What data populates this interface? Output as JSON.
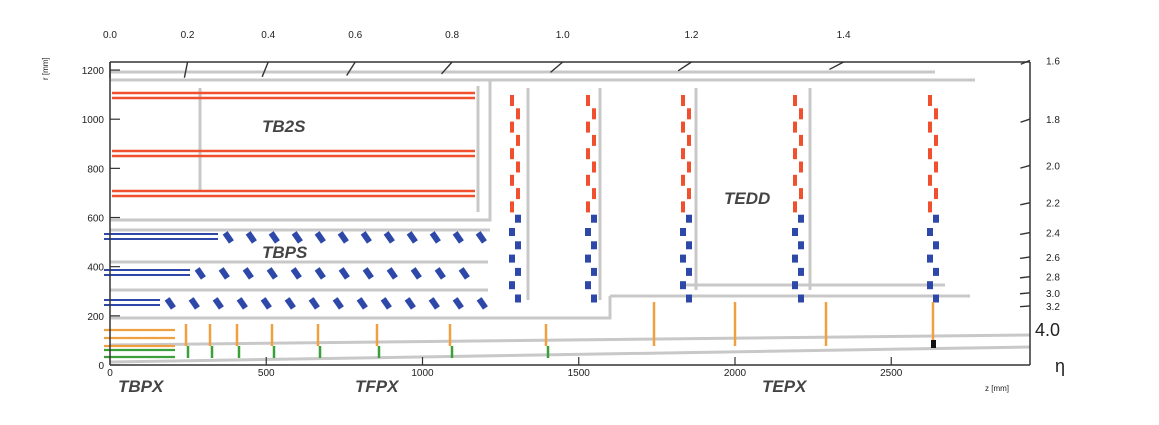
{
  "eta_top_ticks": [
    {
      "eta": 0.0,
      "label": "0.0"
    },
    {
      "eta": 0.2,
      "label": "0.2"
    },
    {
      "eta": 0.4,
      "label": "0.4"
    },
    {
      "eta": 0.6,
      "label": "0.6"
    },
    {
      "eta": 0.8,
      "label": "0.8"
    },
    {
      "eta": 1.0,
      "label": "1.0"
    },
    {
      "eta": 1.2,
      "label": "1.2"
    },
    {
      "eta": 1.4,
      "label": "1.4"
    }
  ],
  "eta_right_ticks": [
    {
      "eta": 1.6,
      "label": "1.6"
    },
    {
      "eta": 1.8,
      "label": "1.8"
    },
    {
      "eta": 2.0,
      "label": "2.0"
    },
    {
      "eta": 2.2,
      "label": "2.2"
    },
    {
      "eta": 2.4,
      "label": "2.4"
    },
    {
      "eta": 2.6,
      "label": "2.6"
    },
    {
      "eta": 2.8,
      "label": "2.8"
    },
    {
      "eta": 3.0,
      "label": "3.0"
    },
    {
      "eta": 3.2,
      "label": "3.2"
    }
  ],
  "eta_forward_label": "4.0",
  "eta_symbol": "η",
  "r_axis": {
    "label": "r [mm]",
    "ticks": [
      {
        "r": 0,
        "label": "0"
      },
      {
        "r": 200,
        "label": "200"
      },
      {
        "r": 400,
        "label": "400"
      },
      {
        "r": 600,
        "label": "600"
      },
      {
        "r": 800,
        "label": "800"
      },
      {
        "r": 1000,
        "label": "1000"
      },
      {
        "r": 1200,
        "label": "1200"
      }
    ]
  },
  "z_axis": {
    "label": "z [mm]",
    "ticks": [
      {
        "z": 0,
        "label": "0"
      },
      {
        "z": 500,
        "label": "500"
      },
      {
        "z": 1000,
        "label": "1000"
      },
      {
        "z": 1500,
        "label": "1500"
      },
      {
        "z": 2000,
        "label": "2000"
      },
      {
        "z": 2500,
        "label": "2500"
      }
    ]
  },
  "subsystems": {
    "tb2s": "TB2S",
    "tbps": "TBPS",
    "tedd": "TEDD",
    "tbpx": "TBPX",
    "tfpx": "TFPX",
    "tepx": "TEPX"
  },
  "colors": {
    "tb2s": "#f0502d",
    "tbps": "#2d48a8",
    "tbpx_orange": "#f0a040",
    "tbpx_green": "#3aa03a",
    "support": "#c8c8c8",
    "axis": "#333333"
  }
}
